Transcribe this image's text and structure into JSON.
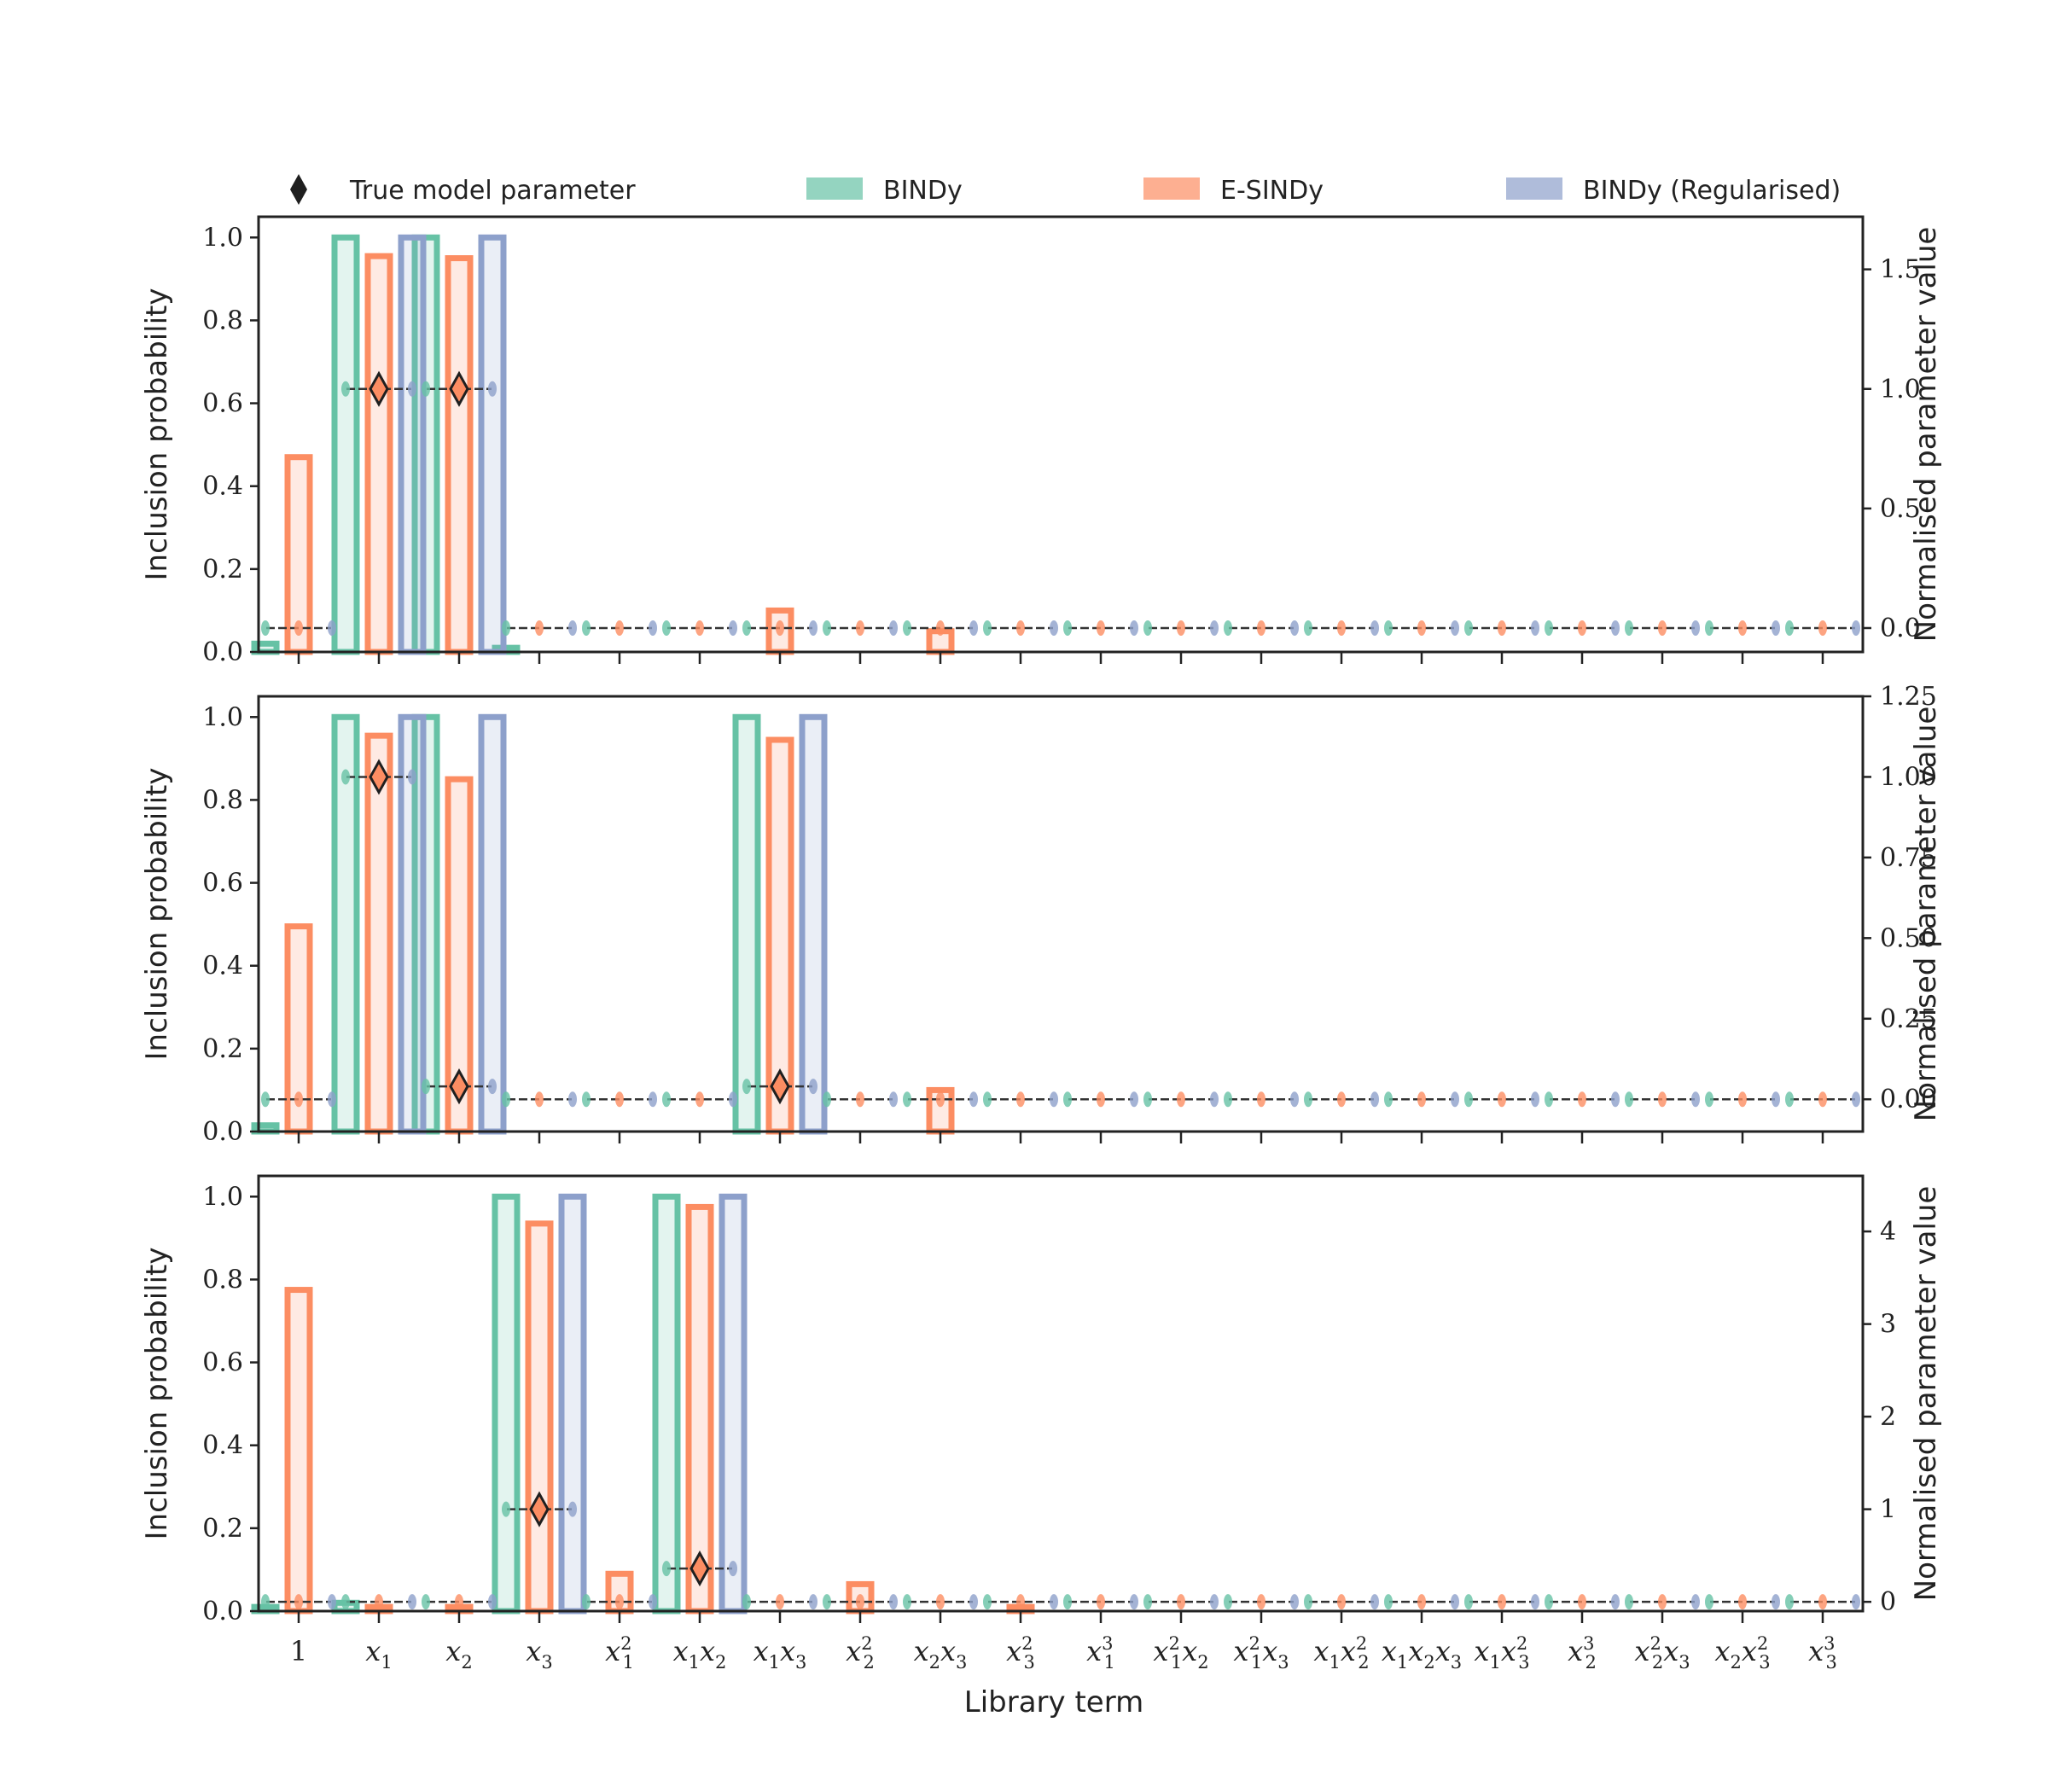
{
  "legend": {
    "items": [
      {
        "label": "True model parameter",
        "marker": "diamond",
        "color": "#1f1f1f"
      },
      {
        "label": "BINDy",
        "marker": "patch",
        "color": "#66c2a5"
      },
      {
        "label": "E-SINDy",
        "marker": "patch",
        "color": "#fc8d62"
      },
      {
        "label": "BINDy (Regularised)",
        "marker": "patch",
        "color": "#8da0cb"
      }
    ]
  },
  "colors": {
    "bindy": "#66c2a5",
    "esindy": "#fc8d62",
    "bindy_reg": "#8da0cb",
    "true_param": "#1f1f1f",
    "axis": "#222222"
  },
  "chart_data": {
    "type": "bar",
    "xlabel": "Library term",
    "categories": [
      "1",
      "x1",
      "x2",
      "x3",
      "x1^2",
      "x1x2",
      "x1x3",
      "x2^2",
      "x2x3",
      "x3^2",
      "x1^3",
      "x1^2x2",
      "x1^2x3",
      "x1x2^2",
      "x1x2x3",
      "x1x3^2",
      "x2^3",
      "x2^2x3",
      "x2x3^2",
      "x3^3"
    ],
    "category_labels_html": [
      "1",
      "<tspan font-style='italic'>x</tspan><tspan dy='10' font-size='22'>1</tspan>",
      "<tspan font-style='italic'>x</tspan><tspan dy='10' font-size='22'>2</tspan>",
      "<tspan font-style='italic'>x</tspan><tspan dy='10' font-size='22'>3</tspan>"
    ],
    "panels": [
      {
        "ylabel_left": "Inclusion probability",
        "ylabel_right": "Normalised parameter value",
        "ylim_left": [
          0,
          1.05
        ],
        "yticks_left": [
          0.0,
          0.2,
          0.4,
          0.6,
          0.8,
          1.0
        ],
        "ylim_right": [
          -0.1,
          1.72
        ],
        "yticks_right": [
          0.0,
          0.5,
          1.0,
          1.5
        ],
        "series": [
          {
            "name": "BINDy",
            "values": [
              0.02,
              1.0,
              1.0,
              0.01,
              0,
              0,
              0,
              0,
              0,
              0,
              0,
              0,
              0,
              0,
              0,
              0,
              0,
              0,
              0,
              0
            ]
          },
          {
            "name": "E-SINDy",
            "values": [
              0.47,
              0.955,
              0.95,
              0,
              0,
              0,
              0.1,
              0,
              0.05,
              0,
              0,
              0,
              0,
              0,
              0,
              0,
              0,
              0,
              0,
              0
            ]
          },
          {
            "name": "BINDy (Regularised)",
            "values": [
              0,
              1.0,
              1.0,
              0,
              0,
              0,
              0,
              0,
              0,
              0,
              0,
              0,
              0,
              0,
              0,
              0,
              0,
              0,
              0,
              0
            ]
          }
        ],
        "true_params": [
          0,
          1.0,
          1.0,
          0,
          0,
          0,
          0,
          0,
          0,
          0,
          0,
          0,
          0,
          0,
          0,
          0,
          0,
          0,
          0,
          0
        ],
        "true_markers_at": [
          1,
          2
        ]
      },
      {
        "ylabel_left": "Inclusion probability",
        "ylabel_right": "Normalised parameter value",
        "ylim_left": [
          0,
          1.05
        ],
        "yticks_left": [
          0.0,
          0.2,
          0.4,
          0.6,
          0.8,
          1.0
        ],
        "ylim_right": [
          -0.1,
          1.25
        ],
        "yticks_right": [
          0.0,
          0.25,
          0.5,
          0.75,
          1.0,
          1.25
        ],
        "ytick_labels_right": [
          "0.00",
          "0.25",
          "0.50",
          "0.75",
          "1.00",
          "1.25"
        ],
        "series": [
          {
            "name": "BINDy",
            "values": [
              0.015,
              1.0,
              1.0,
              0,
              0,
              0,
              1.0,
              0,
              0,
              0,
              0,
              0,
              0,
              0,
              0,
              0,
              0,
              0,
              0,
              0
            ]
          },
          {
            "name": "E-SINDy",
            "values": [
              0.495,
              0.955,
              0.85,
              0,
              0,
              0,
              0.945,
              0,
              0.1,
              0,
              0,
              0,
              0,
              0,
              0,
              0,
              0,
              0,
              0,
              0
            ]
          },
          {
            "name": "BINDy (Regularised)",
            "values": [
              0,
              1.0,
              1.0,
              0,
              0,
              0,
              1.0,
              0,
              0,
              0,
              0,
              0,
              0,
              0,
              0,
              0,
              0,
              0,
              0,
              0
            ]
          }
        ],
        "true_params": [
          0,
          1.0,
          0.04,
          0,
          0,
          0,
          0.04,
          0,
          0,
          0,
          0,
          0,
          0,
          0,
          0,
          0,
          0,
          0,
          0,
          0
        ],
        "true_markers_at": [
          1,
          2,
          6
        ]
      },
      {
        "ylabel_left": "Inclusion probability",
        "ylabel_right": "Normalised parameter value",
        "ylim_left": [
          0,
          1.05
        ],
        "yticks_left": [
          0.0,
          0.2,
          0.4,
          0.6,
          0.8,
          1.0
        ],
        "ylim_right": [
          -0.1,
          4.6
        ],
        "yticks_right": [
          0,
          1,
          2,
          3,
          4
        ],
        "series": [
          {
            "name": "BINDy",
            "values": [
              0.01,
              0.02,
              0,
              1.0,
              0,
              1.0,
              0,
              0,
              0,
              0,
              0,
              0,
              0,
              0,
              0,
              0,
              0,
              0,
              0,
              0
            ]
          },
          {
            "name": "E-SINDy",
            "values": [
              0.775,
              0.01,
              0.01,
              0.935,
              0.09,
              0.975,
              0,
              0.065,
              0,
              0.01,
              0,
              0,
              0,
              0,
              0,
              0,
              0,
              0,
              0,
              0
            ]
          },
          {
            "name": "BINDy (Regularised)",
            "values": [
              0,
              0,
              0,
              1.0,
              0,
              1.0,
              0,
              0,
              0,
              0,
              0,
              0,
              0,
              0,
              0,
              0,
              0,
              0,
              0,
              0
            ]
          }
        ],
        "true_params": [
          0,
          0,
          0,
          1.0,
          0,
          0.36,
          0,
          0,
          0,
          0,
          0,
          0,
          0,
          0,
          0,
          0,
          0,
          0,
          0,
          0
        ],
        "true_markers_at": [
          3,
          5
        ]
      }
    ]
  }
}
